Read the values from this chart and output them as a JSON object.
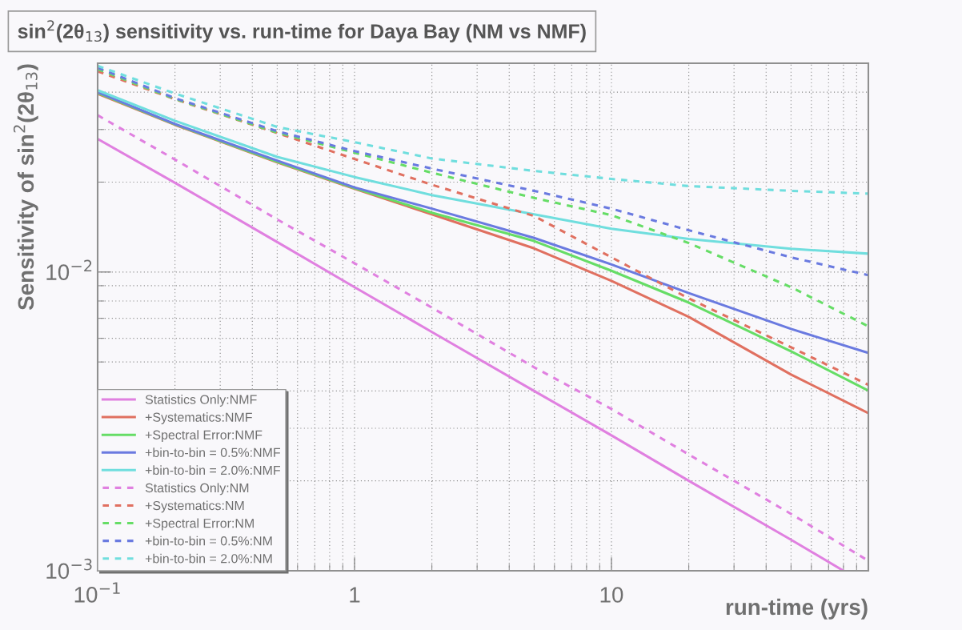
{
  "chart_data": {
    "type": "line",
    "title": "sin$^{2}$(2θ$_{13}$) sensitivity vs. run-time for Daya Bay (NM vs NMF)",
    "xlabel": "run-time (yrs)",
    "ylabel": "Sensitivity of sin$^{2}$(2θ$_{13}$)",
    "log": "xy",
    "grid": true,
    "legend": "bottom left",
    "marker": "none",
    "xlim": [
      0.1,
      100
    ],
    "ylim": [
      0.001,
      0.05
    ],
    "xticks": [
      {
        "value": 0.1,
        "label": "10$^{−1}$"
      },
      1,
      10
    ],
    "yticks": [
      {
        "value": 0.001,
        "label": "10$^{−3}$"
      },
      {
        "value": 0.01,
        "label": "10$^{−2}$"
      }
    ],
    "x": [
      0.1,
      0.2,
      0.5,
      1,
      2,
      5,
      10,
      20,
      50,
      100
    ],
    "series": [
      {
        "name": "Statistics Only:NMF",
        "color": "#e080e0",
        "line_style": "solid",
        "x": [
          0.1,
          0.2,
          0.5,
          1,
          2,
          5,
          10,
          20,
          50,
          80
        ],
        "values": [
          0.0279,
          0.0199,
          0.0126,
          0.0089,
          0.0063,
          0.004,
          0.00284,
          0.002,
          0.00127,
          0.001
        ]
      },
      {
        "name": "+Systematics:NMF",
        "color": "#e07060",
        "line_style": "solid",
        "values": [
          0.0395,
          0.0311,
          0.0233,
          0.019,
          0.0156,
          0.012,
          0.00934,
          0.00708,
          0.00454,
          0.00337
        ]
      },
      {
        "name": "+Spectral Error:NMF",
        "color": "#66dd66",
        "line_style": "solid",
        "values": [
          0.0398,
          0.0312,
          0.0234,
          0.0191,
          0.0158,
          0.0127,
          0.0101,
          0.0079,
          0.00543,
          0.00401
        ]
      },
      {
        "name": "+bin-to-bin = 0.5%:NMF",
        "color": "#6a7ae0",
        "line_style": "solid",
        "values": [
          0.04,
          0.0313,
          0.0236,
          0.0192,
          0.0163,
          0.013,
          0.0106,
          0.0085,
          0.00645,
          0.00536
        ]
      },
      {
        "name": "+bin-to-bin = 2.0%:NMF",
        "color": "#70dede",
        "line_style": "solid",
        "values": [
          0.0406,
          0.0321,
          0.0243,
          0.0208,
          0.0181,
          0.0156,
          0.01396,
          0.0129,
          0.01196,
          0.01152
        ]
      },
      {
        "name": "Statistics Only:NM",
        "color": "#e080e0",
        "line_style": "dashed",
        "values": [
          0.0335,
          0.0238,
          0.015,
          0.0107,
          0.0076,
          0.0048,
          0.00348,
          0.00245,
          0.00155,
          0.00108
        ]
      },
      {
        "name": "+Systematics:NM",
        "color": "#e07060",
        "line_style": "dashed",
        "values": [
          0.047,
          0.0379,
          0.0292,
          0.0239,
          0.0196,
          0.0154,
          0.0112,
          0.00816,
          0.0056,
          0.00419
        ]
      },
      {
        "name": "+Spectral Error:NM",
        "color": "#66dd66",
        "line_style": "dashed",
        "values": [
          0.0478,
          0.038,
          0.0293,
          0.0251,
          0.0215,
          0.0177,
          0.0155,
          0.0125,
          0.0089,
          0.00658
        ]
      },
      {
        "name": "+bin-to-bin = 0.5%:NM",
        "color": "#6a7ae0",
        "line_style": "dashed",
        "values": [
          0.0483,
          0.0382,
          0.0296,
          0.0254,
          0.0222,
          0.0187,
          0.0163,
          0.0138,
          0.0112,
          0.00976
        ]
      },
      {
        "name": "+bin-to-bin = 2.0%:NM",
        "color": "#70dede",
        "line_style": "dashed",
        "values": [
          0.049,
          0.0396,
          0.0306,
          0.0272,
          0.024,
          0.0218,
          0.0205,
          0.0194,
          0.0187,
          0.0183
        ]
      }
    ]
  }
}
